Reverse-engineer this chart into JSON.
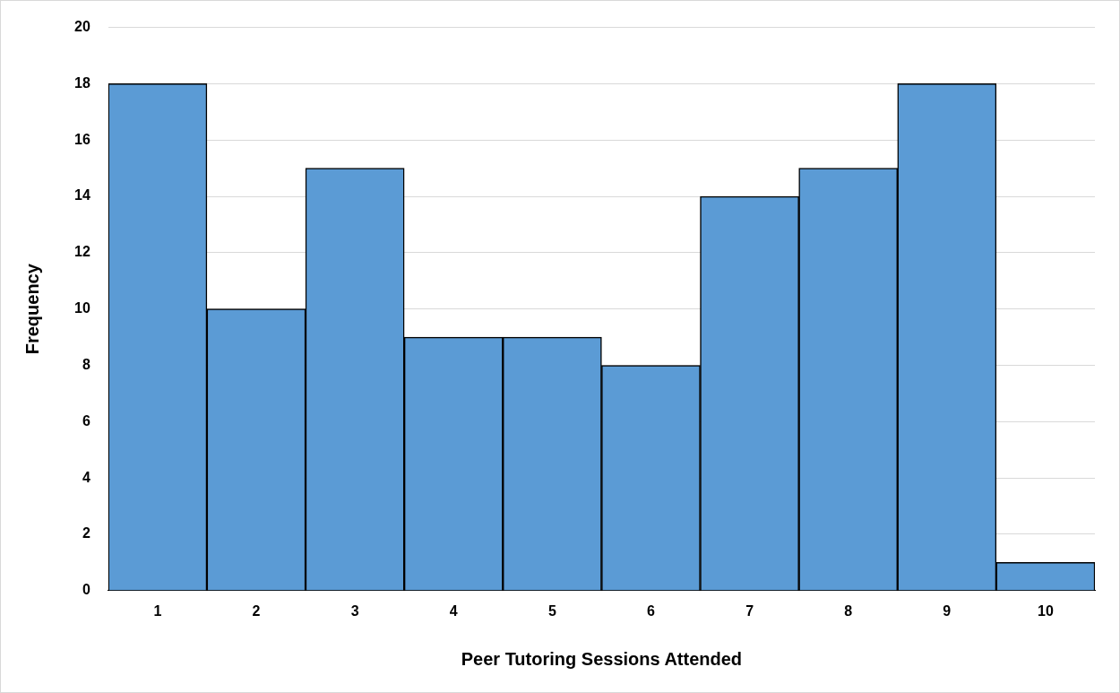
{
  "chart_data": {
    "type": "bar",
    "xlabel": "Peer Tutoring Sessions Attended",
    "ylabel": "Frequency",
    "categories": [
      "1",
      "2",
      "3",
      "4",
      "5",
      "6",
      "7",
      "8",
      "9",
      "10"
    ],
    "values": [
      18,
      10,
      15,
      9,
      9,
      8,
      14,
      15,
      18,
      1
    ],
    "color": "#5b9bd5",
    "ylim": [
      0,
      20
    ],
    "yticks": [
      0,
      2,
      4,
      6,
      8,
      10,
      12,
      14,
      16,
      18,
      20
    ],
    "grid": "y",
    "legend": false
  }
}
